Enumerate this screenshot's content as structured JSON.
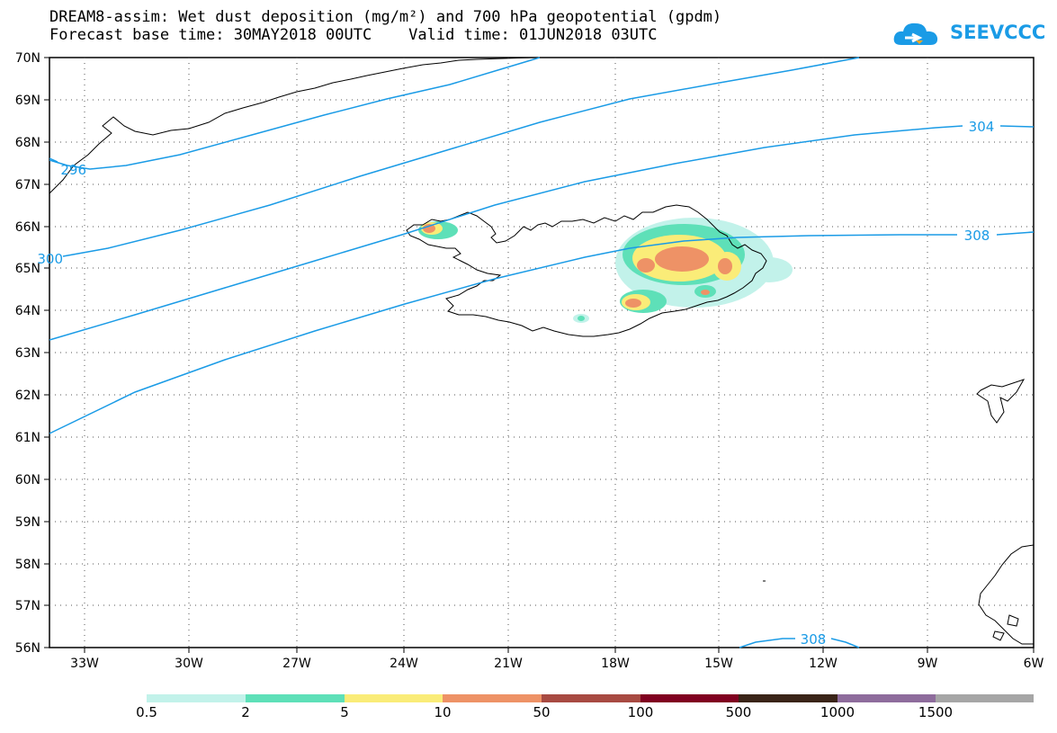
{
  "title_line1": "DREAM8-assim: Wet dust deposition (mg/m²) and 700 hPa geopotential (gpdm)",
  "title_line2": "Forecast base time: 30MAY2018 00UTC    Valid time: 01JUN2018 03UTC",
  "logo_text": "SEEVCCC",
  "colors": {
    "contour": "#1a9be6",
    "coast": "#000000",
    "grid": "#555555"
  },
  "lat_labels": [
    "70N",
    "69N",
    "68N",
    "67N",
    "66N",
    "65N",
    "64N",
    "63N",
    "62N",
    "61N",
    "60N",
    "59N",
    "58N",
    "57N",
    "56N"
  ],
  "lon_labels": [
    "33W",
    "30W",
    "27W",
    "24W",
    "21W",
    "18W",
    "15W",
    "12W",
    "9W",
    "6W"
  ],
  "contour_labels": [
    "296",
    "300",
    "304",
    "308",
    "308"
  ],
  "colorbar": {
    "labels": [
      "0.5",
      "2",
      "5",
      "10",
      "50",
      "100",
      "500",
      "1000",
      "1500"
    ],
    "colors": [
      "#c2f2ea",
      "#5ee0b8",
      "#faec78",
      "#ee9266",
      "#a84a42",
      "#800020",
      "#3a2418",
      "#8e6c9c",
      "#a6a6a6"
    ]
  }
}
